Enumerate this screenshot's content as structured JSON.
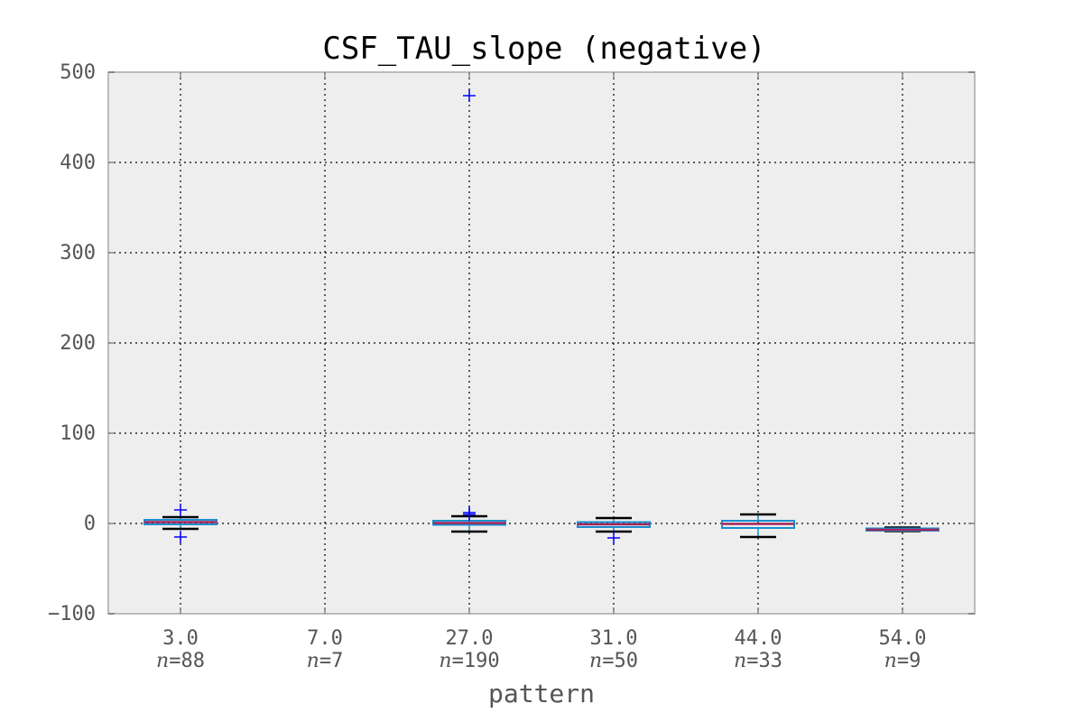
{
  "chart_data": {
    "type": "box",
    "title": "CSF_TAU_slope (negative)",
    "xlabel": "pattern",
    "ylabel": "",
    "ylim": [
      -100,
      500
    ],
    "yticks": [
      -100,
      0,
      100,
      200,
      300,
      400,
      500
    ],
    "grid": true,
    "categories": [
      "3.0",
      "7.0",
      "27.0",
      "31.0",
      "44.0",
      "54.0"
    ],
    "counts": [
      "88",
      "7",
      "190",
      "50",
      "33",
      "9"
    ],
    "count_prefix": "n",
    "count_sep": "=",
    "boxes": [
      {
        "category": "3.0",
        "q1": -1,
        "median": 1.5,
        "q3": 4,
        "whisker_low": -6,
        "whisker_high": 7,
        "outliers": [
          15,
          -15
        ]
      },
      {
        "category": "7.0",
        "q1": null,
        "median": null,
        "q3": null,
        "whisker_low": null,
        "whisker_high": null,
        "outliers": []
      },
      {
        "category": "27.0",
        "q1": -1.5,
        "median": 0.5,
        "q3": 3,
        "whisker_low": -9,
        "whisker_high": 8,
        "outliers": [
          474,
          12,
          10
        ]
      },
      {
        "category": "31.0",
        "q1": -4,
        "median": -1,
        "q3": 1.5,
        "whisker_low": -9,
        "whisker_high": 6,
        "outliers": [
          -16
        ]
      },
      {
        "category": "44.0",
        "q1": -5,
        "median": -0.5,
        "q3": 3,
        "whisker_low": -15,
        "whisker_high": 10,
        "outliers": []
      },
      {
        "category": "54.0",
        "q1": -8,
        "median": -7,
        "q3": -5.5,
        "whisker_low": -8.5,
        "whisker_high": -4.5,
        "outliers": []
      }
    ],
    "colors": {
      "background": "#eeeeee",
      "frame": "#bcbcbc",
      "box": "#1a8ecf",
      "median": "#a2255a",
      "whisker": "#000000",
      "outlier": "#0000ff",
      "grid": "#000000"
    }
  }
}
